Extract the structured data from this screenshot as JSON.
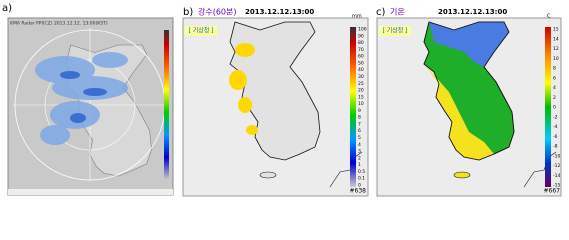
{
  "panels": [
    {
      "label": "a)",
      "header": "KMA Radar PPI(CZ) 2013.12.12. 13:00(KST)"
    },
    {
      "label": "b)",
      "title": "강수(60분)",
      "datetime": "2013.12.12.13:00",
      "unit": "mm",
      "agency": "[ 기상청 ]",
      "legend": [
        "100",
        "90",
        "80",
        "70",
        "60",
        "50",
        "40",
        "30",
        "25",
        "20",
        "15",
        "10",
        "9",
        "8",
        "7",
        "6",
        "5",
        "4",
        "3",
        "2",
        "1",
        "0.5",
        "0.1",
        "0"
      ],
      "station_count": "#638"
    },
    {
      "label": "c)",
      "title": "기온",
      "datetime": "2013.12.12.13:00",
      "unit": "C",
      "agency": "[ 기상청 ]",
      "legend": [
        "15",
        "14",
        "12",
        "10",
        "8",
        "6",
        "4",
        "2",
        "0",
        "-2",
        "-4",
        "-6",
        "-8",
        "-10",
        "-12",
        "-14",
        "-15"
      ],
      "station_count": "#667"
    }
  ]
}
